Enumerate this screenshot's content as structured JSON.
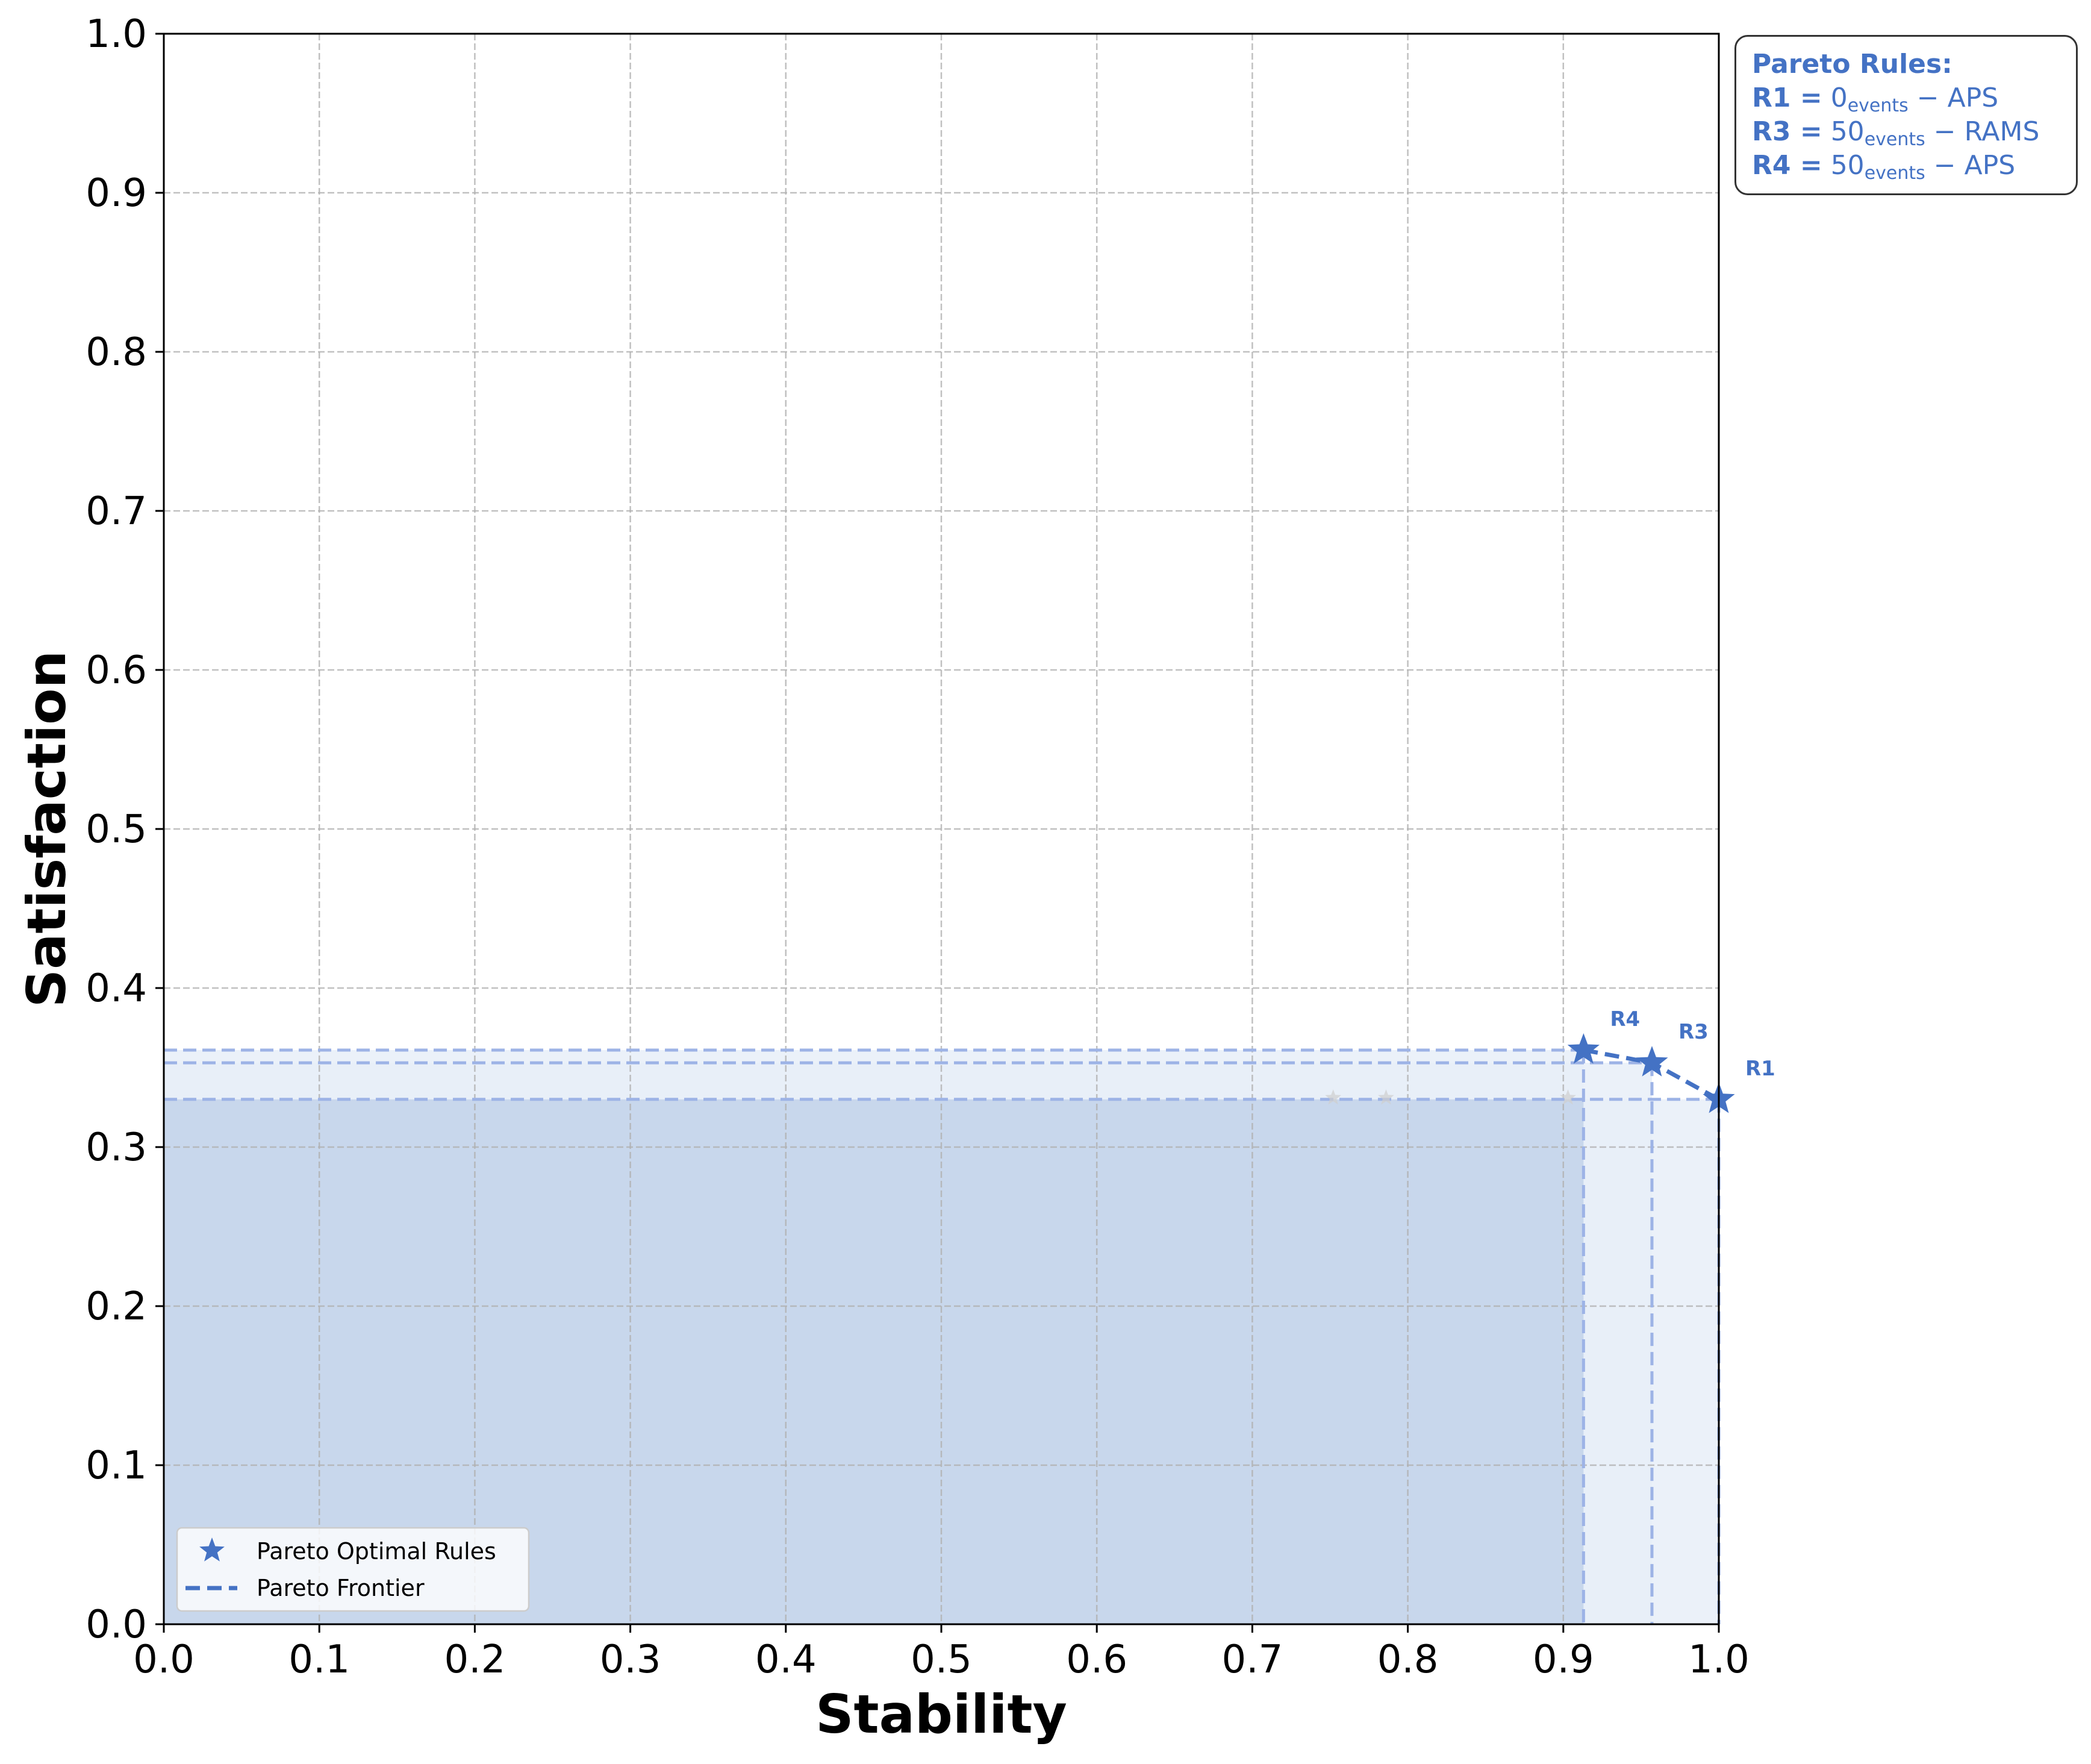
{
  "chart_data": {
    "type": "scatter",
    "xlabel": "Stability",
    "ylabel": "Satisfaction",
    "xlim": [
      0.0,
      1.0
    ],
    "ylim": [
      0.0,
      1.0
    ],
    "xticks": [
      "0.0",
      "0.1",
      "0.2",
      "0.3",
      "0.4",
      "0.5",
      "0.6",
      "0.7",
      "0.8",
      "0.9",
      "1.0"
    ],
    "yticks": [
      "0.0",
      "0.1",
      "0.2",
      "0.3",
      "0.4",
      "0.5",
      "0.6",
      "0.7",
      "0.8",
      "0.9",
      "1.0"
    ],
    "grid": true,
    "legend_position": "lower-left",
    "legend": {
      "markers_label": "Pareto Optimal Rules",
      "frontier_label": "Pareto Frontier"
    },
    "pareto_points": [
      {
        "label": "R4",
        "x": 0.913,
        "y": 0.361
      },
      {
        "label": "R3",
        "x": 0.957,
        "y": 0.353
      },
      {
        "label": "R1",
        "x": 1.0,
        "y": 0.33
      }
    ],
    "dominated_points": [
      {
        "x": 0.752,
        "y": 0.331
      },
      {
        "x": 0.786,
        "y": 0.331
      },
      {
        "x": 0.903,
        "y": 0.331
      }
    ],
    "colors": {
      "accent": "#4472c4",
      "dashed_guides": "#9db3e6",
      "region_fill": "#c8d7ec",
      "region_fill_light": "#e8eef8",
      "dominated_marker": "#cfcfcf",
      "grid": "#b0b0b0"
    }
  },
  "rules_box": {
    "title": "Pareto Rules:",
    "rules": [
      {
        "id": "R1 =",
        "base": "0",
        "sub": "events",
        "rest": " − APS"
      },
      {
        "id": "R3 =",
        "base": "50",
        "sub": "events",
        "rest": " − RAMS"
      },
      {
        "id": "R4 =",
        "base": "50",
        "sub": "events",
        "rest": " − APS"
      }
    ]
  }
}
